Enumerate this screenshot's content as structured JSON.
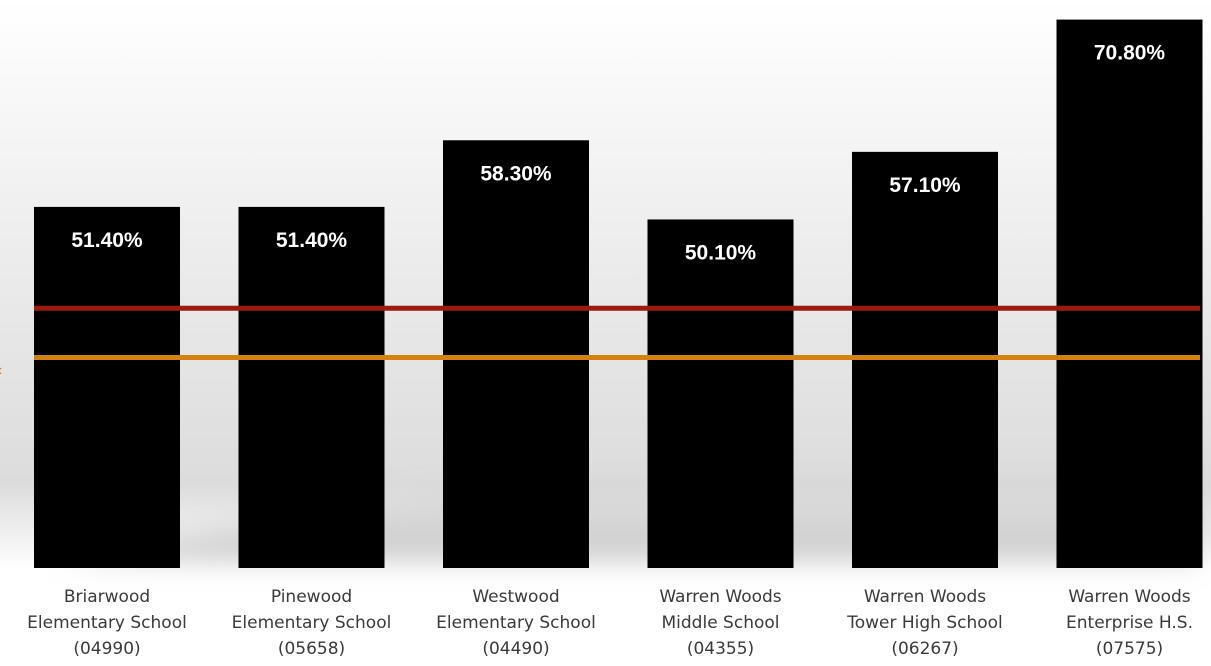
{
  "chart_data": {
    "type": "bar",
    "categories": [
      [
        "Briarwood",
        "Elementary School",
        "(04990)"
      ],
      [
        "Pinewood",
        "Elementary School",
        "(05658)"
      ],
      [
        "Westwood",
        "Elementary School",
        "(04490)"
      ],
      [
        "Warren Woods",
        "Middle School",
        "(04355)"
      ],
      [
        "Warren Woods",
        "Tower High School",
        "(06267)"
      ],
      [
        "Warren Woods",
        "Enterprise H.S.",
        "(07575)"
      ]
    ],
    "values": [
      51.4,
      51.4,
      58.3,
      50.1,
      57.1,
      70.8
    ],
    "data_labels": [
      "51.40%",
      "51.40%",
      "58.30%",
      "50.10%",
      "57.10%",
      "70.80%"
    ],
    "reference_lines": [
      {
        "value": 40.9,
        "color": "#9b1b10"
      },
      {
        "value": 35.8,
        "color": "#d4820f"
      }
    ],
    "ylim": [
      14,
      72
    ],
    "bar_color": "#000000",
    "grid": false,
    "legend": "none"
  }
}
